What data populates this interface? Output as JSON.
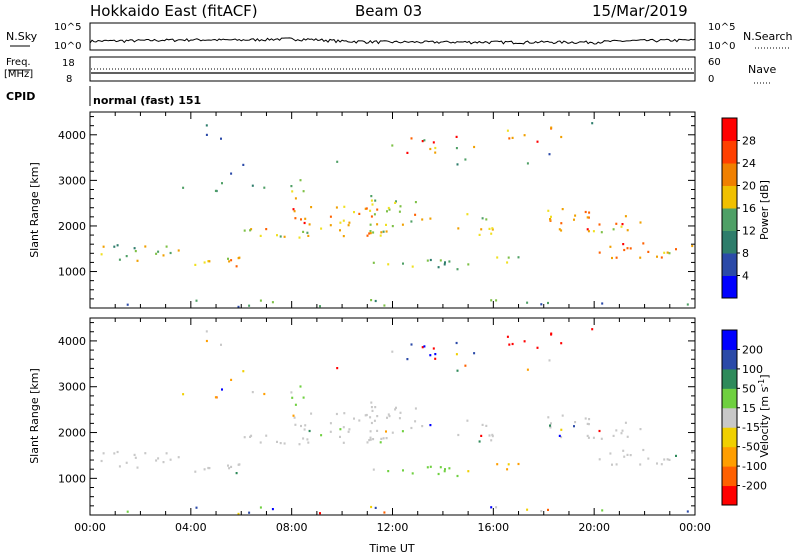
{
  "header": {
    "radar": "Hokkaido East (fitACF)",
    "beam": "Beam 03",
    "date": "15/Mar/2019"
  },
  "top_panel": {
    "nsky_label": "N.Sky",
    "nsearch_label": "N.Search",
    "left_ticks": [
      "10^5",
      "10^0"
    ],
    "right_ticks": [
      "10^5",
      "10^0"
    ],
    "freq_label": "Freq.",
    "freq_unit": "[MHz]",
    "freq_ticks": [
      "18",
      "8"
    ],
    "nave_label": "Nave",
    "nave_ticks": [
      "60",
      "0"
    ],
    "cpid_label": "CPID",
    "cpid_value": "normal (fast) 151"
  },
  "colors": {
    "power": [
      "#0000ff",
      "#2b4aa8",
      "#2e7d6b",
      "#4fa066",
      "#7dc046",
      "#f0e020",
      "#f0a000",
      "#ff6000",
      "#ff0000"
    ],
    "velocity": [
      "#ff0000",
      "#ff6000",
      "#ff9e00",
      "#f0d000",
      "#c8c8c8",
      "#c8c8c8",
      "#6fd040",
      "#2e8a5a",
      "#2b4aa8",
      "#0000ff"
    ],
    "ground": "#9a9a9a"
  },
  "chart_data": [
    {
      "type": "line",
      "name_label": "N.Sky",
      "x_range": [
        "00:00",
        "24:00"
      ],
      "description_scale": "log",
      "ylim": [
        1,
        100000
      ],
      "x": [
        "00:00",
        "02:00",
        "04:00",
        "06:00",
        "08:00",
        "10:00",
        "12:00",
        "14:00",
        "16:00",
        "18:00",
        "20:00",
        "22:00",
        "24:00"
      ],
      "values": [
        30,
        40,
        60,
        50,
        90,
        30,
        20,
        20,
        20,
        20,
        20,
        40,
        50
      ]
    },
    {
      "type": "heatmap",
      "ylabel": "Slant Range [km]",
      "y_ticks": [
        1000,
        2000,
        3000,
        4000
      ],
      "ylim": [
        200,
        4500
      ],
      "x_ticks": [
        "00:00",
        "04:00",
        "08:00",
        "12:00",
        "16:00",
        "20:00",
        "00:00"
      ],
      "colorbar_label": "Power [dB]",
      "colorbar_ticks": [
        4,
        8,
        12,
        16,
        20,
        24,
        28
      ],
      "colorbar_range": [
        0,
        30
      ]
    },
    {
      "type": "heatmap",
      "ylabel": "Slant Range [km]",
      "xlabel": "Time UT",
      "y_ticks": [
        1000,
        2000,
        3000,
        4000
      ],
      "ylim": [
        200,
        4500
      ],
      "x_ticks": [
        "00:00",
        "04:00",
        "08:00",
        "12:00",
        "16:00",
        "20:00",
        "00:00"
      ],
      "colorbar_label": "Velocity [m s^-1]",
      "colorbar_ticks": [
        -200,
        -100,
        -50,
        -15,
        15,
        50,
        100,
        200
      ]
    }
  ]
}
